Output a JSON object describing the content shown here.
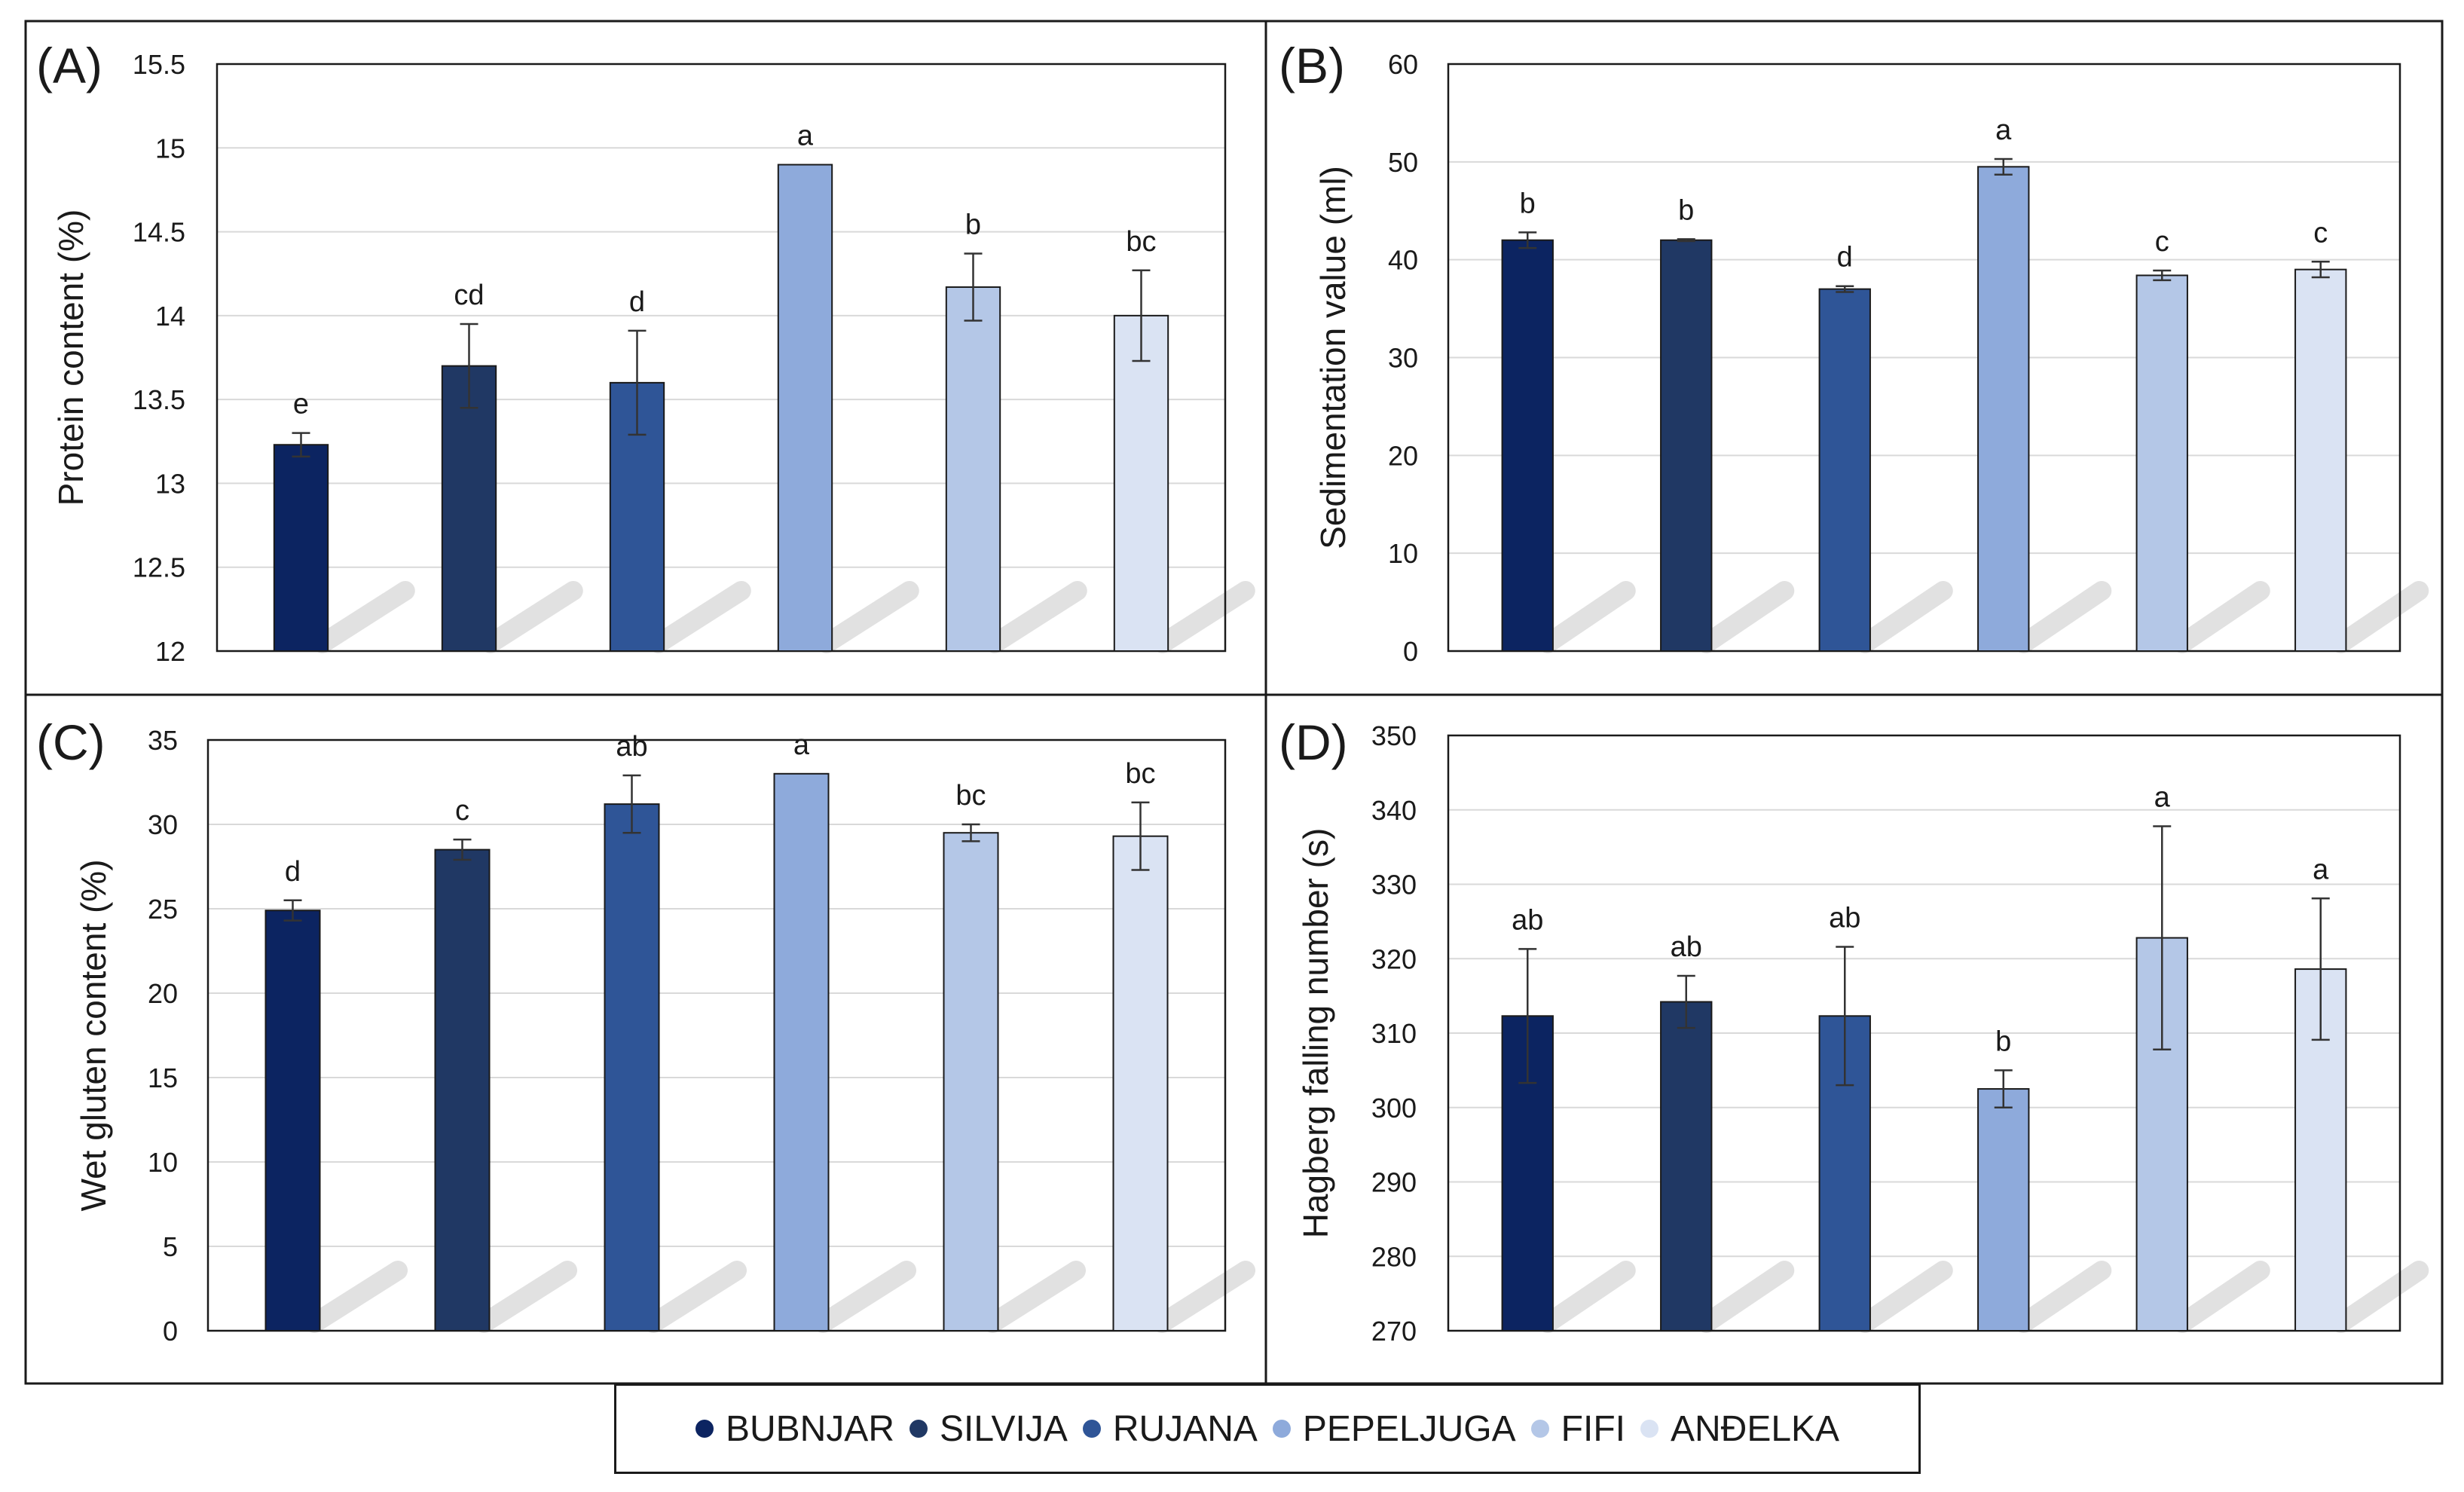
{
  "legend": [
    {
      "name": "BUBNJAR",
      "color": "#0c2461"
    },
    {
      "name": "SILVIJA",
      "color": "#203864"
    },
    {
      "name": "RUJANA",
      "color": "#2f5597"
    },
    {
      "name": "PEPELJUGA",
      "color": "#8eaadb"
    },
    {
      "name": "FIFI",
      "color": "#b4c7e7"
    },
    {
      "name": "ANĐELKA",
      "color": "#dae3f3"
    }
  ],
  "chart_data": [
    {
      "type": "bar",
      "panel_label": "(A)",
      "ylabel": "Protein content (%)",
      "ylim": [
        12,
        15.5
      ],
      "yticks": [
        12,
        12.5,
        13,
        13.5,
        14,
        14.5,
        15,
        15.5
      ],
      "ytick_labels": [
        "12",
        "12.5",
        "13",
        "13.5",
        "14",
        "14.5",
        "15",
        "15.5"
      ],
      "categories": [
        "BUBNJAR",
        "SILVIJA",
        "RUJANA",
        "PEPELJUGA",
        "FIFI",
        "ANĐELKA"
      ],
      "values": [
        13.23,
        13.7,
        13.6,
        14.9,
        14.17,
        14.0
      ],
      "errors": [
        0.07,
        0.25,
        0.31,
        0.0,
        0.2,
        0.27
      ],
      "letters": [
        "e",
        "cd",
        "d",
        "a",
        "b",
        "bc"
      ]
    },
    {
      "type": "bar",
      "panel_label": "(B)",
      "ylabel": "Sedimentation value (ml)",
      "ylim": [
        0,
        60
      ],
      "yticks": [
        0,
        10,
        20,
        30,
        40,
        50,
        60
      ],
      "ytick_labels": [
        "0",
        "10",
        "20",
        "30",
        "40",
        "50",
        "60"
      ],
      "categories": [
        "BUBNJAR",
        "SILVIJA",
        "RUJANA",
        "PEPELJUGA",
        "FIFI",
        "ANĐELKA"
      ],
      "values": [
        42,
        42,
        37,
        49.5,
        38.4,
        39
      ],
      "errors": [
        0.8,
        0.1,
        0.3,
        0.8,
        0.5,
        0.8
      ],
      "letters": [
        "b",
        "b",
        "d",
        "a",
        "c",
        "c"
      ]
    },
    {
      "type": "bar",
      "panel_label": "(C)",
      "ylabel": "Wet gluten content (%)",
      "ylim": [
        0,
        35
      ],
      "yticks": [
        0,
        5,
        10,
        15,
        20,
        25,
        30,
        35
      ],
      "ytick_labels": [
        "0",
        "5",
        "10",
        "15",
        "20",
        "25",
        "30",
        "35"
      ],
      "categories": [
        "BUBNJAR",
        "SILVIJA",
        "RUJANA",
        "PEPELJUGA",
        "FIFI",
        "ANĐELKA"
      ],
      "values": [
        24.9,
        28.5,
        31.2,
        33.0,
        29.5,
        29.3
      ],
      "errors": [
        0.6,
        0.6,
        1.7,
        0.0,
        0.5,
        2.0
      ],
      "letters": [
        "d",
        "c",
        "ab",
        "a",
        "bc",
        "bc"
      ]
    },
    {
      "type": "bar",
      "panel_label": "(D)",
      "ylabel": "Hagberg falling number (s)",
      "ylim": [
        270,
        350
      ],
      "yticks": [
        270,
        280,
        290,
        300,
        310,
        320,
        330,
        340,
        350
      ],
      "ytick_labels": [
        "270",
        "280",
        "290",
        "300",
        "310",
        "320",
        "330",
        "340",
        "350"
      ],
      "categories": [
        "BUBNJAR",
        "SILVIJA",
        "RUJANA",
        "PEPELJUGA",
        "FIFI",
        "ANĐELKA"
      ],
      "values": [
        312.3,
        314.2,
        312.3,
        302.5,
        322.8,
        318.6
      ],
      "errors": [
        9.0,
        3.5,
        9.3,
        2.5,
        15.0,
        9.5
      ],
      "letters": [
        "ab",
        "ab",
        "ab",
        "b",
        "a",
        "a"
      ]
    }
  ]
}
